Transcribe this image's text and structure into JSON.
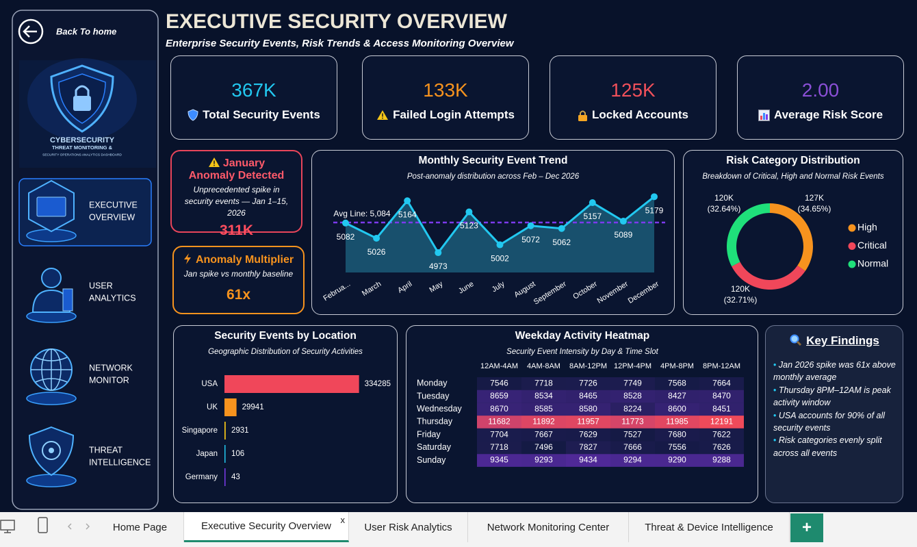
{
  "sidebar": {
    "back": "Back To home",
    "logo": {
      "title": "CYBERSECURITY",
      "subtitle": "THREAT MONITORING &",
      "tagline": "SECURITY OPERATIONS ANALYTICS DASHBOARD"
    },
    "nav": [
      {
        "lines": [
          "EXECUTIVE",
          "OVERVIEW"
        ],
        "active": true
      },
      {
        "lines": [
          "USER",
          "ANALYTICS"
        ],
        "active": false
      },
      {
        "lines": [
          "NETWORK",
          "MONITOR"
        ],
        "active": false
      },
      {
        "lines": [
          "THREAT",
          "INTELLIGENCE"
        ],
        "active": false
      }
    ]
  },
  "header": {
    "title": "EXECUTIVE SECURITY OVERVIEW",
    "subtitle": "Enterprise Security Events, Risk Trends & Access Monitoring Overview"
  },
  "kpis": [
    {
      "value": "367K",
      "label": "Total Security Events",
      "color": "#22c8f0"
    },
    {
      "value": "133K",
      "label": "Failed Login Attempts",
      "color": "#f7931e"
    },
    {
      "value": "125K",
      "label": "Locked Accounts",
      "color": "#f0505a"
    },
    {
      "value": "2.00",
      "label": "Average Risk Score",
      "color": "#8a4fd6"
    }
  ],
  "anomaly": {
    "title": "January Anomaly Detected",
    "text": "Unprecedented spike in security events — Jan 1–15, 2026",
    "value": "311K"
  },
  "multiplier": {
    "title": "Anomaly Multiplier",
    "text": "Jan spike vs monthly baseline",
    "value": "61x"
  },
  "chart_data": [
    {
      "type": "line",
      "title": "Monthly Security Event Trend",
      "subtitle": "Post-anomaly distribution across Feb – Dec 2026",
      "categories": [
        "Februa...",
        "March",
        "April",
        "May",
        "June",
        "July",
        "August",
        "September",
        "October",
        "November",
        "December"
      ],
      "values": [
        5082,
        5026,
        5164,
        4973,
        5123,
        5002,
        5072,
        5062,
        5157,
        5089,
        5179
      ],
      "color": "#22c8f0",
      "area_color": "#1b5a78",
      "ylim": [
        4900,
        5200
      ],
      "avg_line": {
        "value": 5084,
        "label": "Avg Line: 5,084",
        "color": "#7c3aed"
      }
    },
    {
      "type": "pie",
      "donut": true,
      "title": "Risk Category Distribution",
      "subtitle": "Breakdown of Critical, High and Normal Risk Events",
      "categories": [
        "High",
        "Critical",
        "Normal"
      ],
      "values": [
        34.65,
        32.71,
        32.64
      ],
      "value_labels": [
        "(34.65%)",
        "(32.71%)",
        "(32.64%)"
      ],
      "count_labels": [
        "127K",
        "120K",
        "120K"
      ],
      "colors": [
        "#f7931e",
        "#f0475a",
        "#1fe07a"
      ],
      "legend": "right"
    },
    {
      "type": "bar",
      "orientation": "horizontal",
      "title": "Security Events by Location",
      "subtitle": "Geographic Distribution of Security Activities",
      "categories": [
        "USA",
        "UK",
        "Singapore",
        "Japan",
        "Germany"
      ],
      "values": [
        334285,
        29941,
        2931,
        106,
        43
      ],
      "colors": [
        "#f0475a",
        "#f7931e",
        "#f5c518",
        "#22c8f0",
        "#7c3aed"
      ],
      "xlim": [
        0,
        340000
      ]
    }
  ],
  "heatmap": {
    "title": "Weekday Activity Heatmap",
    "subtitle": "Security Event Intensity by Day & Time Slot",
    "columns": [
      "12AM-4AM",
      "4AM-8AM",
      "8AM-12PM",
      "12PM-4PM",
      "4PM-8PM",
      "8PM-12AM"
    ],
    "rows": [
      {
        "day": "Monday",
        "values": [
          7546,
          7718,
          7726,
          7749,
          7568,
          7664
        ]
      },
      {
        "day": "Tuesday",
        "values": [
          8659,
          8534,
          8465,
          8528,
          8427,
          8470
        ]
      },
      {
        "day": "Wednesday",
        "values": [
          8670,
          8585,
          8580,
          8224,
          8600,
          8451
        ]
      },
      {
        "day": "Thursday",
        "values": [
          11682,
          11892,
          11957,
          11773,
          11985,
          12191
        ]
      },
      {
        "day": "Friday",
        "values": [
          7704,
          7667,
          7629,
          7527,
          7680,
          7622
        ]
      },
      {
        "day": "Saturday",
        "values": [
          7718,
          7496,
          7827,
          7666,
          7556,
          7626
        ]
      },
      {
        "day": "Sunday",
        "values": [
          9345,
          9293,
          9434,
          9294,
          9290,
          9288
        ]
      }
    ],
    "colors": [
      "#141a44",
      "#5b2ca8",
      "#ef4a5a"
    ]
  },
  "findings": {
    "title": "Key Findings",
    "items": [
      "Jan 2026 spike was 61x above monthly average",
      "Thursday 8PM–12AM is peak activity window",
      "USA accounts for 90% of all security events",
      "Risk categories evenly split across all events"
    ]
  },
  "tabs": {
    "items": [
      "Home Page",
      "Executive Security Overview",
      "User Risk Analytics",
      "Network Monitoring Center",
      "Threat & Device Intelligence"
    ],
    "active": 1,
    "close": "x",
    "add": "+"
  }
}
